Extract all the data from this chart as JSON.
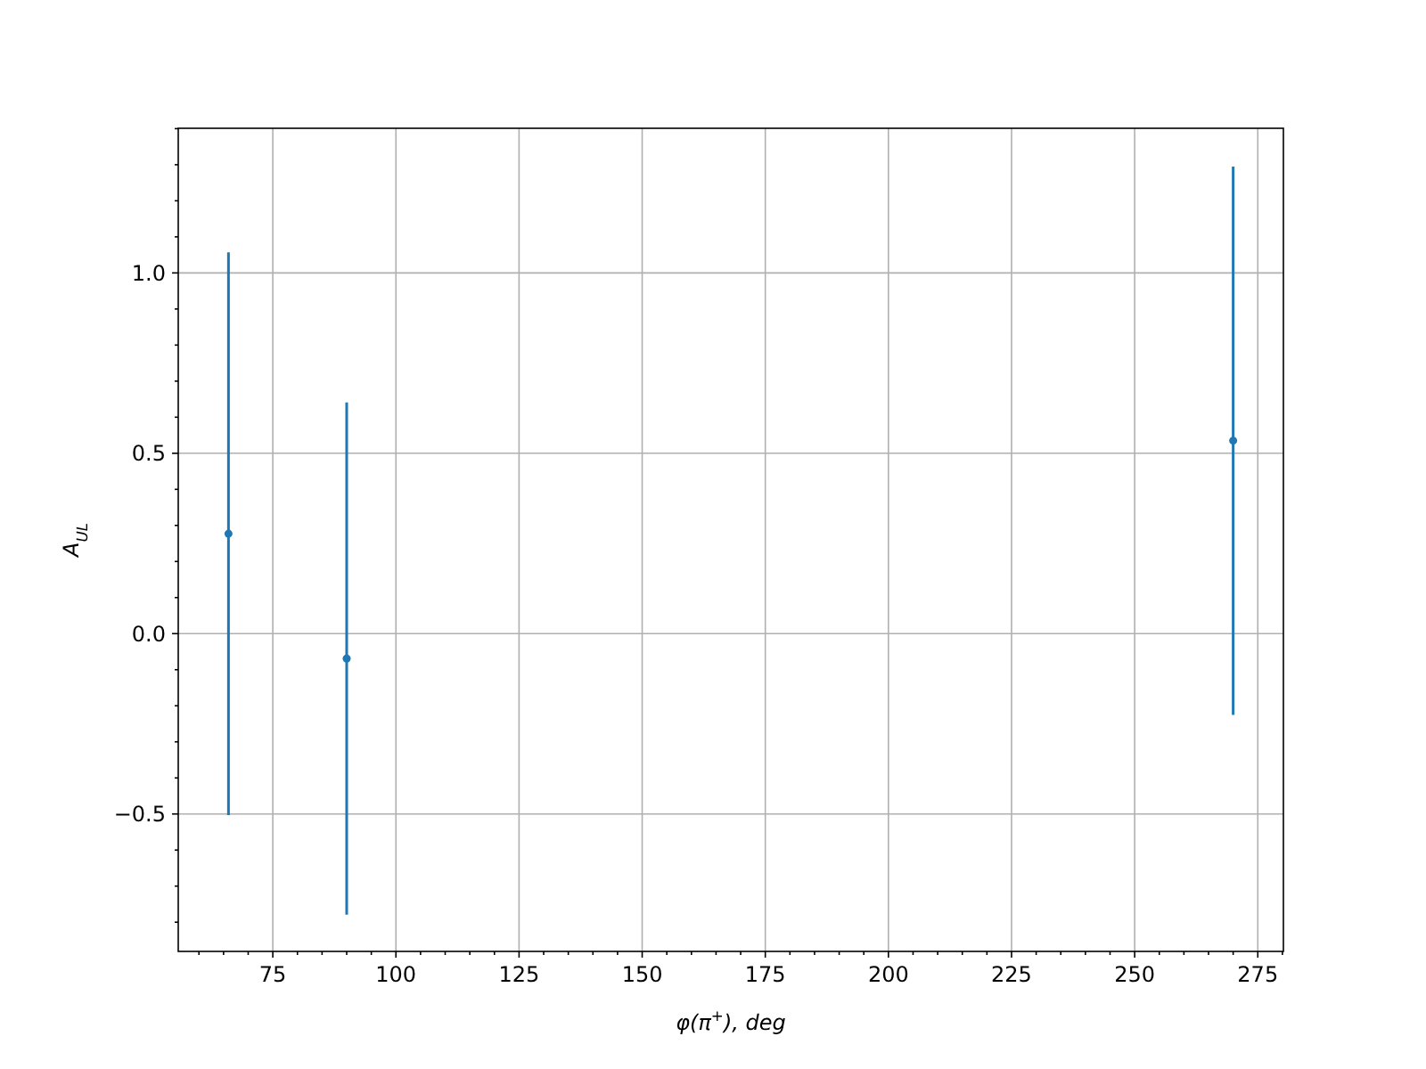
{
  "chart_data": {
    "type": "scatter",
    "xlabel": "φ(π$^{+}$), deg",
    "ylabel": "A$_{UL}$",
    "x": [
      66,
      90,
      270
    ],
    "series": [
      {
        "color": "#1f77b4",
        "values": [
          0.277,
          -0.069,
          0.535
        ],
        "errors": [
          0.78,
          0.71,
          0.76
        ]
      }
    ],
    "xlim": [
      55.8,
      280.2
    ],
    "ylim": [
      -0.881,
      1.401
    ],
    "xticks": [
      {
        "value": 60,
        "label": null
      },
      {
        "value": 65,
        "label": null
      },
      {
        "value": 70,
        "label": null
      },
      75,
      {
        "value": 80,
        "label": null
      },
      {
        "value": 85,
        "label": null
      },
      {
        "value": 90,
        "label": null
      },
      {
        "value": 95,
        "label": null
      },
      100,
      {
        "value": 105,
        "label": null
      },
      {
        "value": 110,
        "label": null
      },
      {
        "value": 115,
        "label": null
      },
      {
        "value": 120,
        "label": null
      },
      125,
      {
        "value": 130,
        "label": null
      },
      {
        "value": 135,
        "label": null
      },
      {
        "value": 140,
        "label": null
      },
      {
        "value": 145,
        "label": null
      },
      150,
      {
        "value": 155,
        "label": null
      },
      {
        "value": 160,
        "label": null
      },
      {
        "value": 165,
        "label": null
      },
      {
        "value": 170,
        "label": null
      },
      175,
      {
        "value": 180,
        "label": null
      },
      {
        "value": 185,
        "label": null
      },
      {
        "value": 190,
        "label": null
      },
      {
        "value": 195,
        "label": null
      },
      200,
      {
        "value": 205,
        "label": null
      },
      {
        "value": 210,
        "label": null
      },
      {
        "value": 215,
        "label": null
      },
      {
        "value": 220,
        "label": null
      },
      225,
      {
        "value": 230,
        "label": null
      },
      {
        "value": 235,
        "label": null
      },
      {
        "value": 240,
        "label": null
      },
      {
        "value": 245,
        "label": null
      },
      250,
      {
        "value": 255,
        "label": null
      },
      {
        "value": 260,
        "label": null
      },
      {
        "value": 265,
        "label": null
      },
      {
        "value": 270,
        "label": null
      },
      275,
      {
        "value": 280,
        "label": null
      }
    ],
    "yticks": [
      {
        "value": -0.8,
        "label": null
      },
      {
        "value": -0.7,
        "label": null
      },
      {
        "value": -0.6,
        "label": null
      },
      {
        "value": -0.5,
        "label": "−0.5"
      },
      {
        "value": -0.4,
        "label": null
      },
      {
        "value": -0.3,
        "label": null
      },
      {
        "value": -0.2,
        "label": null
      },
      {
        "value": -0.1,
        "label": null
      },
      {
        "value": 0,
        "label": "0.0"
      },
      {
        "value": 0.1,
        "label": null
      },
      {
        "value": 0.2,
        "label": null
      },
      {
        "value": 0.3,
        "label": null
      },
      {
        "value": 0.4,
        "label": null
      },
      {
        "value": 0.5,
        "label": "0.5"
      },
      {
        "value": 0.6,
        "label": null
      },
      {
        "value": 0.7,
        "label": null
      },
      {
        "value": 0.8,
        "label": null
      },
      {
        "value": 0.9,
        "label": null
      },
      {
        "value": 1.0,
        "label": "1.0"
      },
      {
        "value": 1.1,
        "label": null
      },
      {
        "value": 1.2,
        "label": null
      },
      {
        "value": 1.3,
        "label": null
      },
      {
        "value": 1.4,
        "label": null
      }
    ],
    "grid": true,
    "marker": "circle"
  }
}
